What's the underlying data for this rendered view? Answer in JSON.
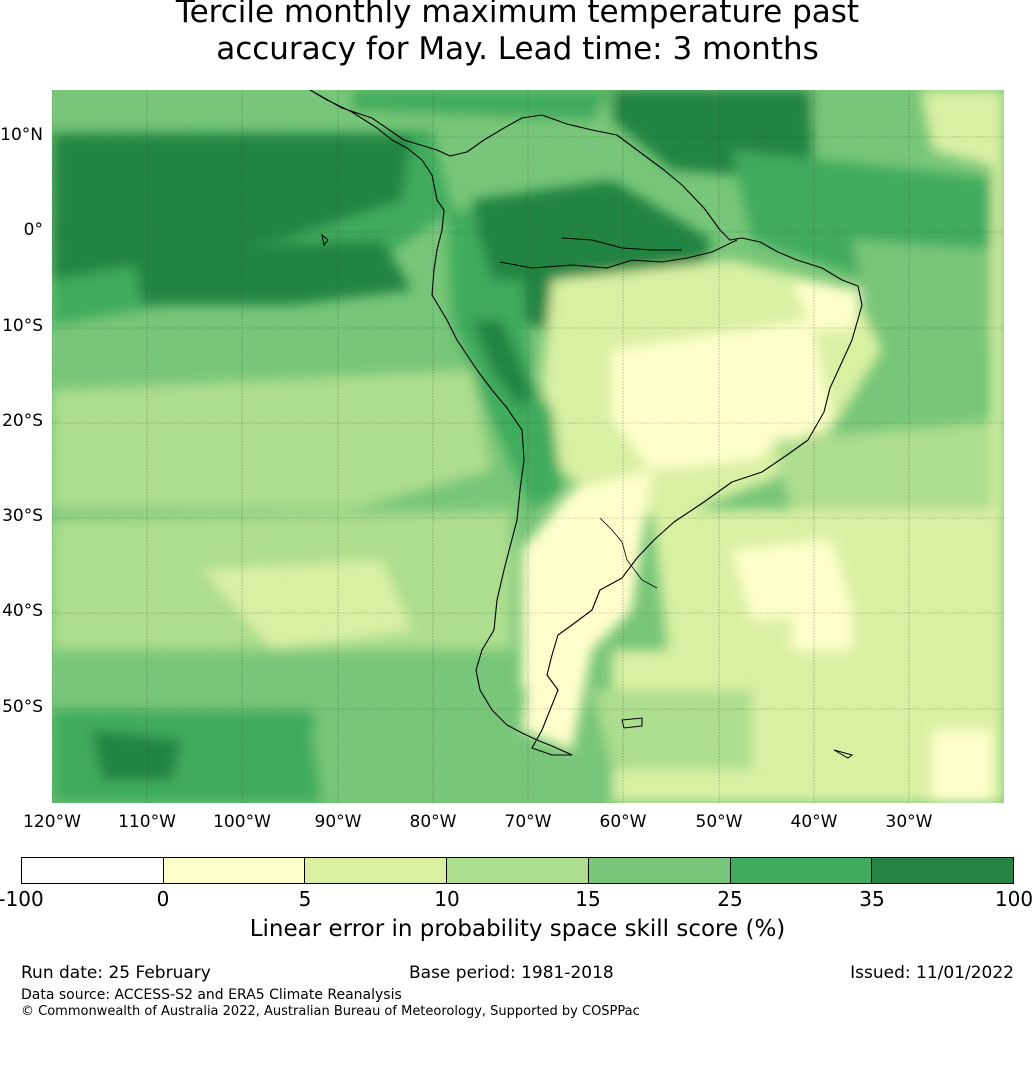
{
  "title_line1": "Tercile monthly maximum temperature past",
  "title_line2": "accuracy for May. Lead time: 3 months",
  "map": {
    "lat_labels": [
      "10°N",
      "0°",
      "10°S",
      "20°S",
      "30°S",
      "40°S",
      "50°S"
    ],
    "lon_labels": [
      "120°W",
      "110°W",
      "100°W",
      "90°W",
      "80°W",
      "70°W",
      "60°W",
      "50°W",
      "40°W",
      "30°W"
    ]
  },
  "colorbar": {
    "colors": [
      "#ffffff",
      "#ffffcc",
      "#d9f0a3",
      "#addd8e",
      "#78c679",
      "#41ab5d",
      "#238443"
    ],
    "ticks": [
      "-100",
      "0",
      "5",
      "10",
      "15",
      "25",
      "35",
      "100"
    ],
    "label": "Linear error in probability space skill score (%)"
  },
  "footer": {
    "run_date": "Run date: 25 February",
    "base_period": "Base period: 1981-2018",
    "issued": "Issued: 11/01/2022",
    "data_source": "Data source: ACCESS-S2 and ERA5 Climate Reanalysis",
    "copyright": "© Commonwealth of Australia 2022, Australian Bureau of Meteorology, Supported by COSPPac"
  }
}
